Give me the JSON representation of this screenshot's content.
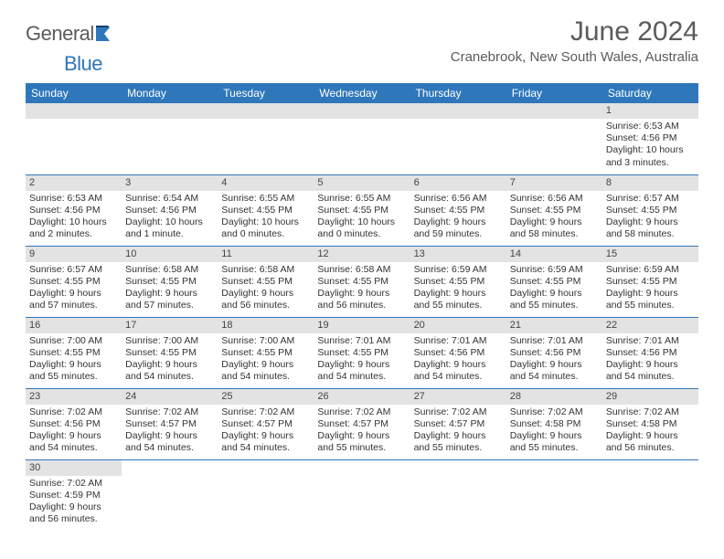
{
  "logo": {
    "text1": "General",
    "text2": "Blue"
  },
  "title": "June 2024",
  "location": "Cranebrook, New South Wales, Australia",
  "colors": {
    "header_bg": "#2f77bb",
    "header_text": "#ffffff",
    "daybar_bg": "#e3e3e3",
    "rule": "#2f77bb",
    "body_text": "#333333",
    "logo_gray": "#5b5b5b",
    "logo_blue": "#2f77bb"
  },
  "daysOfWeek": [
    "Sunday",
    "Monday",
    "Tuesday",
    "Wednesday",
    "Thursday",
    "Friday",
    "Saturday"
  ],
  "weeks": [
    [
      null,
      null,
      null,
      null,
      null,
      null,
      {
        "n": "1",
        "sunrise": "Sunrise: 6:53 AM",
        "sunset": "Sunset: 4:56 PM",
        "daylight": "Daylight: 10 hours and 3 minutes."
      }
    ],
    [
      {
        "n": "2",
        "sunrise": "Sunrise: 6:53 AM",
        "sunset": "Sunset: 4:56 PM",
        "daylight": "Daylight: 10 hours and 2 minutes."
      },
      {
        "n": "3",
        "sunrise": "Sunrise: 6:54 AM",
        "sunset": "Sunset: 4:56 PM",
        "daylight": "Daylight: 10 hours and 1 minute."
      },
      {
        "n": "4",
        "sunrise": "Sunrise: 6:55 AM",
        "sunset": "Sunset: 4:55 PM",
        "daylight": "Daylight: 10 hours and 0 minutes."
      },
      {
        "n": "5",
        "sunrise": "Sunrise: 6:55 AM",
        "sunset": "Sunset: 4:55 PM",
        "daylight": "Daylight: 10 hours and 0 minutes."
      },
      {
        "n": "6",
        "sunrise": "Sunrise: 6:56 AM",
        "sunset": "Sunset: 4:55 PM",
        "daylight": "Daylight: 9 hours and 59 minutes."
      },
      {
        "n": "7",
        "sunrise": "Sunrise: 6:56 AM",
        "sunset": "Sunset: 4:55 PM",
        "daylight": "Daylight: 9 hours and 58 minutes."
      },
      {
        "n": "8",
        "sunrise": "Sunrise: 6:57 AM",
        "sunset": "Sunset: 4:55 PM",
        "daylight": "Daylight: 9 hours and 58 minutes."
      }
    ],
    [
      {
        "n": "9",
        "sunrise": "Sunrise: 6:57 AM",
        "sunset": "Sunset: 4:55 PM",
        "daylight": "Daylight: 9 hours and 57 minutes."
      },
      {
        "n": "10",
        "sunrise": "Sunrise: 6:58 AM",
        "sunset": "Sunset: 4:55 PM",
        "daylight": "Daylight: 9 hours and 57 minutes."
      },
      {
        "n": "11",
        "sunrise": "Sunrise: 6:58 AM",
        "sunset": "Sunset: 4:55 PM",
        "daylight": "Daylight: 9 hours and 56 minutes."
      },
      {
        "n": "12",
        "sunrise": "Sunrise: 6:58 AM",
        "sunset": "Sunset: 4:55 PM",
        "daylight": "Daylight: 9 hours and 56 minutes."
      },
      {
        "n": "13",
        "sunrise": "Sunrise: 6:59 AM",
        "sunset": "Sunset: 4:55 PM",
        "daylight": "Daylight: 9 hours and 55 minutes."
      },
      {
        "n": "14",
        "sunrise": "Sunrise: 6:59 AM",
        "sunset": "Sunset: 4:55 PM",
        "daylight": "Daylight: 9 hours and 55 minutes."
      },
      {
        "n": "15",
        "sunrise": "Sunrise: 6:59 AM",
        "sunset": "Sunset: 4:55 PM",
        "daylight": "Daylight: 9 hours and 55 minutes."
      }
    ],
    [
      {
        "n": "16",
        "sunrise": "Sunrise: 7:00 AM",
        "sunset": "Sunset: 4:55 PM",
        "daylight": "Daylight: 9 hours and 55 minutes."
      },
      {
        "n": "17",
        "sunrise": "Sunrise: 7:00 AM",
        "sunset": "Sunset: 4:55 PM",
        "daylight": "Daylight: 9 hours and 54 minutes."
      },
      {
        "n": "18",
        "sunrise": "Sunrise: 7:00 AM",
        "sunset": "Sunset: 4:55 PM",
        "daylight": "Daylight: 9 hours and 54 minutes."
      },
      {
        "n": "19",
        "sunrise": "Sunrise: 7:01 AM",
        "sunset": "Sunset: 4:55 PM",
        "daylight": "Daylight: 9 hours and 54 minutes."
      },
      {
        "n": "20",
        "sunrise": "Sunrise: 7:01 AM",
        "sunset": "Sunset: 4:56 PM",
        "daylight": "Daylight: 9 hours and 54 minutes."
      },
      {
        "n": "21",
        "sunrise": "Sunrise: 7:01 AM",
        "sunset": "Sunset: 4:56 PM",
        "daylight": "Daylight: 9 hours and 54 minutes."
      },
      {
        "n": "22",
        "sunrise": "Sunrise: 7:01 AM",
        "sunset": "Sunset: 4:56 PM",
        "daylight": "Daylight: 9 hours and 54 minutes."
      }
    ],
    [
      {
        "n": "23",
        "sunrise": "Sunrise: 7:02 AM",
        "sunset": "Sunset: 4:56 PM",
        "daylight": "Daylight: 9 hours and 54 minutes."
      },
      {
        "n": "24",
        "sunrise": "Sunrise: 7:02 AM",
        "sunset": "Sunset: 4:57 PM",
        "daylight": "Daylight: 9 hours and 54 minutes."
      },
      {
        "n": "25",
        "sunrise": "Sunrise: 7:02 AM",
        "sunset": "Sunset: 4:57 PM",
        "daylight": "Daylight: 9 hours and 54 minutes."
      },
      {
        "n": "26",
        "sunrise": "Sunrise: 7:02 AM",
        "sunset": "Sunset: 4:57 PM",
        "daylight": "Daylight: 9 hours and 55 minutes."
      },
      {
        "n": "27",
        "sunrise": "Sunrise: 7:02 AM",
        "sunset": "Sunset: 4:57 PM",
        "daylight": "Daylight: 9 hours and 55 minutes."
      },
      {
        "n": "28",
        "sunrise": "Sunrise: 7:02 AM",
        "sunset": "Sunset: 4:58 PM",
        "daylight": "Daylight: 9 hours and 55 minutes."
      },
      {
        "n": "29",
        "sunrise": "Sunrise: 7:02 AM",
        "sunset": "Sunset: 4:58 PM",
        "daylight": "Daylight: 9 hours and 56 minutes."
      }
    ],
    [
      {
        "n": "30",
        "sunrise": "Sunrise: 7:02 AM",
        "sunset": "Sunset: 4:59 PM",
        "daylight": "Daylight: 9 hours and 56 minutes."
      },
      null,
      null,
      null,
      null,
      null,
      null
    ]
  ]
}
